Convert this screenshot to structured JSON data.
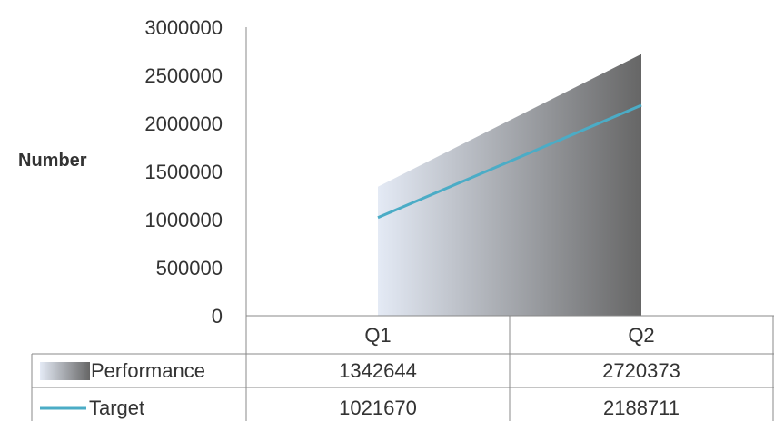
{
  "chart_data": {
    "type": "area",
    "categories": [
      "Q1",
      "Q2"
    ],
    "series": [
      {
        "name": "Performance",
        "type": "area",
        "values": [
          1342644,
          2720373
        ],
        "color": "#6e6e6e"
      },
      {
        "name": "Target",
        "type": "line",
        "values": [
          1021670,
          2188711
        ],
        "color": "#4bacc6"
      }
    ],
    "ylabel": "Number",
    "ylim": [
      0,
      3000000
    ],
    "yticks": [
      0,
      500000,
      1000000,
      1500000,
      2000000,
      2500000,
      3000000
    ],
    "grid": false,
    "legend": "data-table",
    "data_table": true
  }
}
